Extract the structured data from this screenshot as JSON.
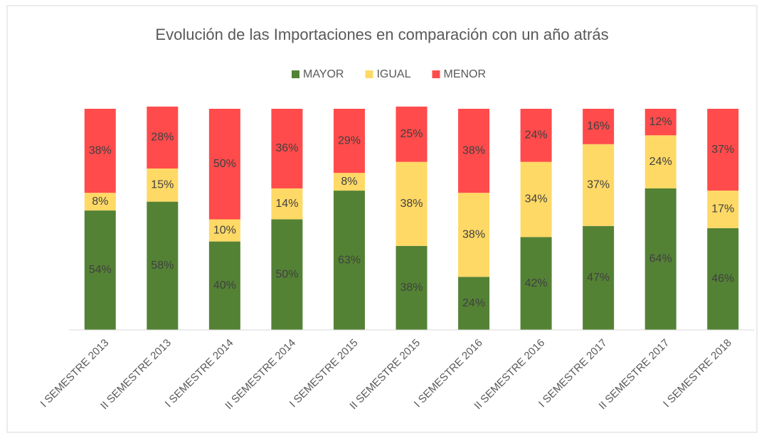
{
  "chart_data": {
    "type": "stacked_bar",
    "title": "Evolución de las Importaciones en comparación con un año atrás",
    "categories": [
      "I SEMESTRE 2013",
      "II SEMESTRE 2013",
      "I SEMESTRE 2014",
      "II SEMESTRE 2014",
      "I SEMESTRE 2015",
      "II SEMESTRE 2015",
      "I SEMESTRE 2016",
      "II SEMESTRE 2016",
      "I SEMESTRE 2017",
      "II SEMESTRE 2017",
      "I SEMESTRE 2018"
    ],
    "series": [
      {
        "name": "MAYOR",
        "color": "#548235",
        "values": [
          54,
          58,
          40,
          50,
          63,
          38,
          24,
          42,
          47,
          64,
          46
        ],
        "value_labels": [
          "54%",
          "58%",
          "40%",
          "50%",
          "63%",
          "38%",
          "24%",
          "42%",
          "47%",
          "64%",
          "46%"
        ]
      },
      {
        "name": "IGUAL",
        "color": "#ffd966",
        "values": [
          8,
          15,
          10,
          14,
          8,
          38,
          38,
          34,
          37,
          24,
          17
        ],
        "value_labels": [
          "8%",
          "15%",
          "10%",
          "14%",
          "8%",
          "38%",
          "38%",
          "34%",
          "37%",
          "24%",
          "17%"
        ]
      },
      {
        "name": "MENOR",
        "color": "#ff4b4b",
        "values": [
          38,
          28,
          50,
          36,
          29,
          25,
          38,
          24,
          16,
          12,
          37
        ],
        "value_labels": [
          "38%",
          "28%",
          "50%",
          "36%",
          "29%",
          "25%",
          "38%",
          "24%",
          "16%",
          "12%",
          "37%"
        ]
      }
    ],
    "ylim": [
      0,
      100
    ],
    "legend": "top"
  }
}
